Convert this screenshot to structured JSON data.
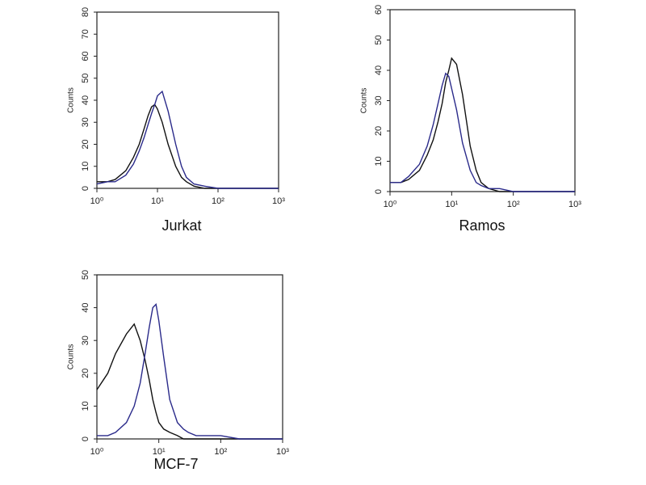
{
  "chart_data": [
    {
      "type": "line",
      "xlabel": "Jurkat",
      "ylabel": "Counts",
      "xscale": "log",
      "xlim": [
        1,
        1000
      ],
      "ylim": [
        0,
        80
      ],
      "xticks": [
        {
          "value": 1,
          "label": "10⁰"
        },
        {
          "value": 10,
          "label": "10¹"
        },
        {
          "value": 100,
          "label": "10²"
        },
        {
          "value": 1000,
          "label": "10³"
        }
      ],
      "yticks": [
        0,
        10,
        20,
        30,
        40,
        50,
        60,
        70,
        80
      ],
      "x": [
        1,
        1.5,
        2,
        3,
        4,
        5,
        6,
        7,
        8,
        9,
        10,
        12,
        15,
        20,
        25,
        30,
        40,
        60,
        100,
        200,
        1000
      ],
      "series": [
        {
          "color": "#111111",
          "values": [
            3,
            3,
            4,
            8,
            14,
            20,
            27,
            33,
            37,
            38,
            36,
            30,
            20,
            10,
            5,
            3,
            1,
            0,
            0,
            0,
            0
          ]
        },
        {
          "color": "#2a2a8a",
          "values": [
            2,
            3,
            3,
            6,
            11,
            17,
            23,
            29,
            34,
            38,
            42,
            44,
            35,
            20,
            10,
            5,
            2,
            1,
            0,
            0,
            0
          ]
        }
      ]
    },
    {
      "type": "line",
      "xlabel": "Ramos",
      "ylabel": "Counts",
      "xscale": "log",
      "xlim": [
        1,
        1000
      ],
      "ylim": [
        0,
        60
      ],
      "xticks": [
        {
          "value": 1,
          "label": "10⁰"
        },
        {
          "value": 10,
          "label": "10¹"
        },
        {
          "value": 100,
          "label": "10²"
        },
        {
          "value": 1000,
          "label": "10³"
        }
      ],
      "yticks": [
        0,
        10,
        20,
        30,
        40,
        50,
        60
      ],
      "x": [
        1,
        1.5,
        2,
        3,
        4,
        5,
        6,
        7,
        8,
        9,
        10,
        12,
        15,
        20,
        25,
        30,
        40,
        60,
        100,
        200,
        1000
      ],
      "series": [
        {
          "color": "#111111",
          "values": [
            3,
            3,
            4,
            7,
            12,
            17,
            23,
            29,
            36,
            40,
            44,
            42,
            32,
            15,
            7,
            3,
            1,
            0,
            0,
            0,
            0
          ]
        },
        {
          "color": "#2a2a8a",
          "values": [
            3,
            3,
            5,
            9,
            15,
            22,
            29,
            35,
            39,
            38,
            34,
            27,
            16,
            7,
            3,
            2,
            1,
            1,
            0,
            0,
            0
          ]
        }
      ]
    },
    {
      "type": "line",
      "xlabel": "MCF-7",
      "ylabel": "Counts",
      "xscale": "log",
      "xlim": [
        1,
        1000
      ],
      "ylim": [
        0,
        50
      ],
      "xticks": [
        {
          "value": 1,
          "label": "10⁰"
        },
        {
          "value": 10,
          "label": "10¹"
        },
        {
          "value": 100,
          "label": "10²"
        },
        {
          "value": 1000,
          "label": "10³"
        }
      ],
      "yticks": [
        0,
        10,
        20,
        30,
        40,
        50
      ],
      "x": [
        1,
        1.5,
        2,
        3,
        4,
        5,
        6,
        7,
        8,
        9,
        10,
        12,
        15,
        20,
        25,
        30,
        40,
        60,
        100,
        200,
        1000
      ],
      "series": [
        {
          "color": "#111111",
          "values": [
            15,
            20,
            26,
            32,
            35,
            30,
            24,
            18,
            12,
            8,
            5,
            3,
            2,
            1,
            0,
            0,
            0,
            0,
            0,
            0,
            0
          ]
        },
        {
          "color": "#2a2a8a",
          "values": [
            1,
            1,
            2,
            5,
            10,
            17,
            26,
            34,
            40,
            41,
            36,
            25,
            12,
            5,
            3,
            2,
            1,
            1,
            1,
            0,
            0
          ]
        }
      ]
    }
  ]
}
